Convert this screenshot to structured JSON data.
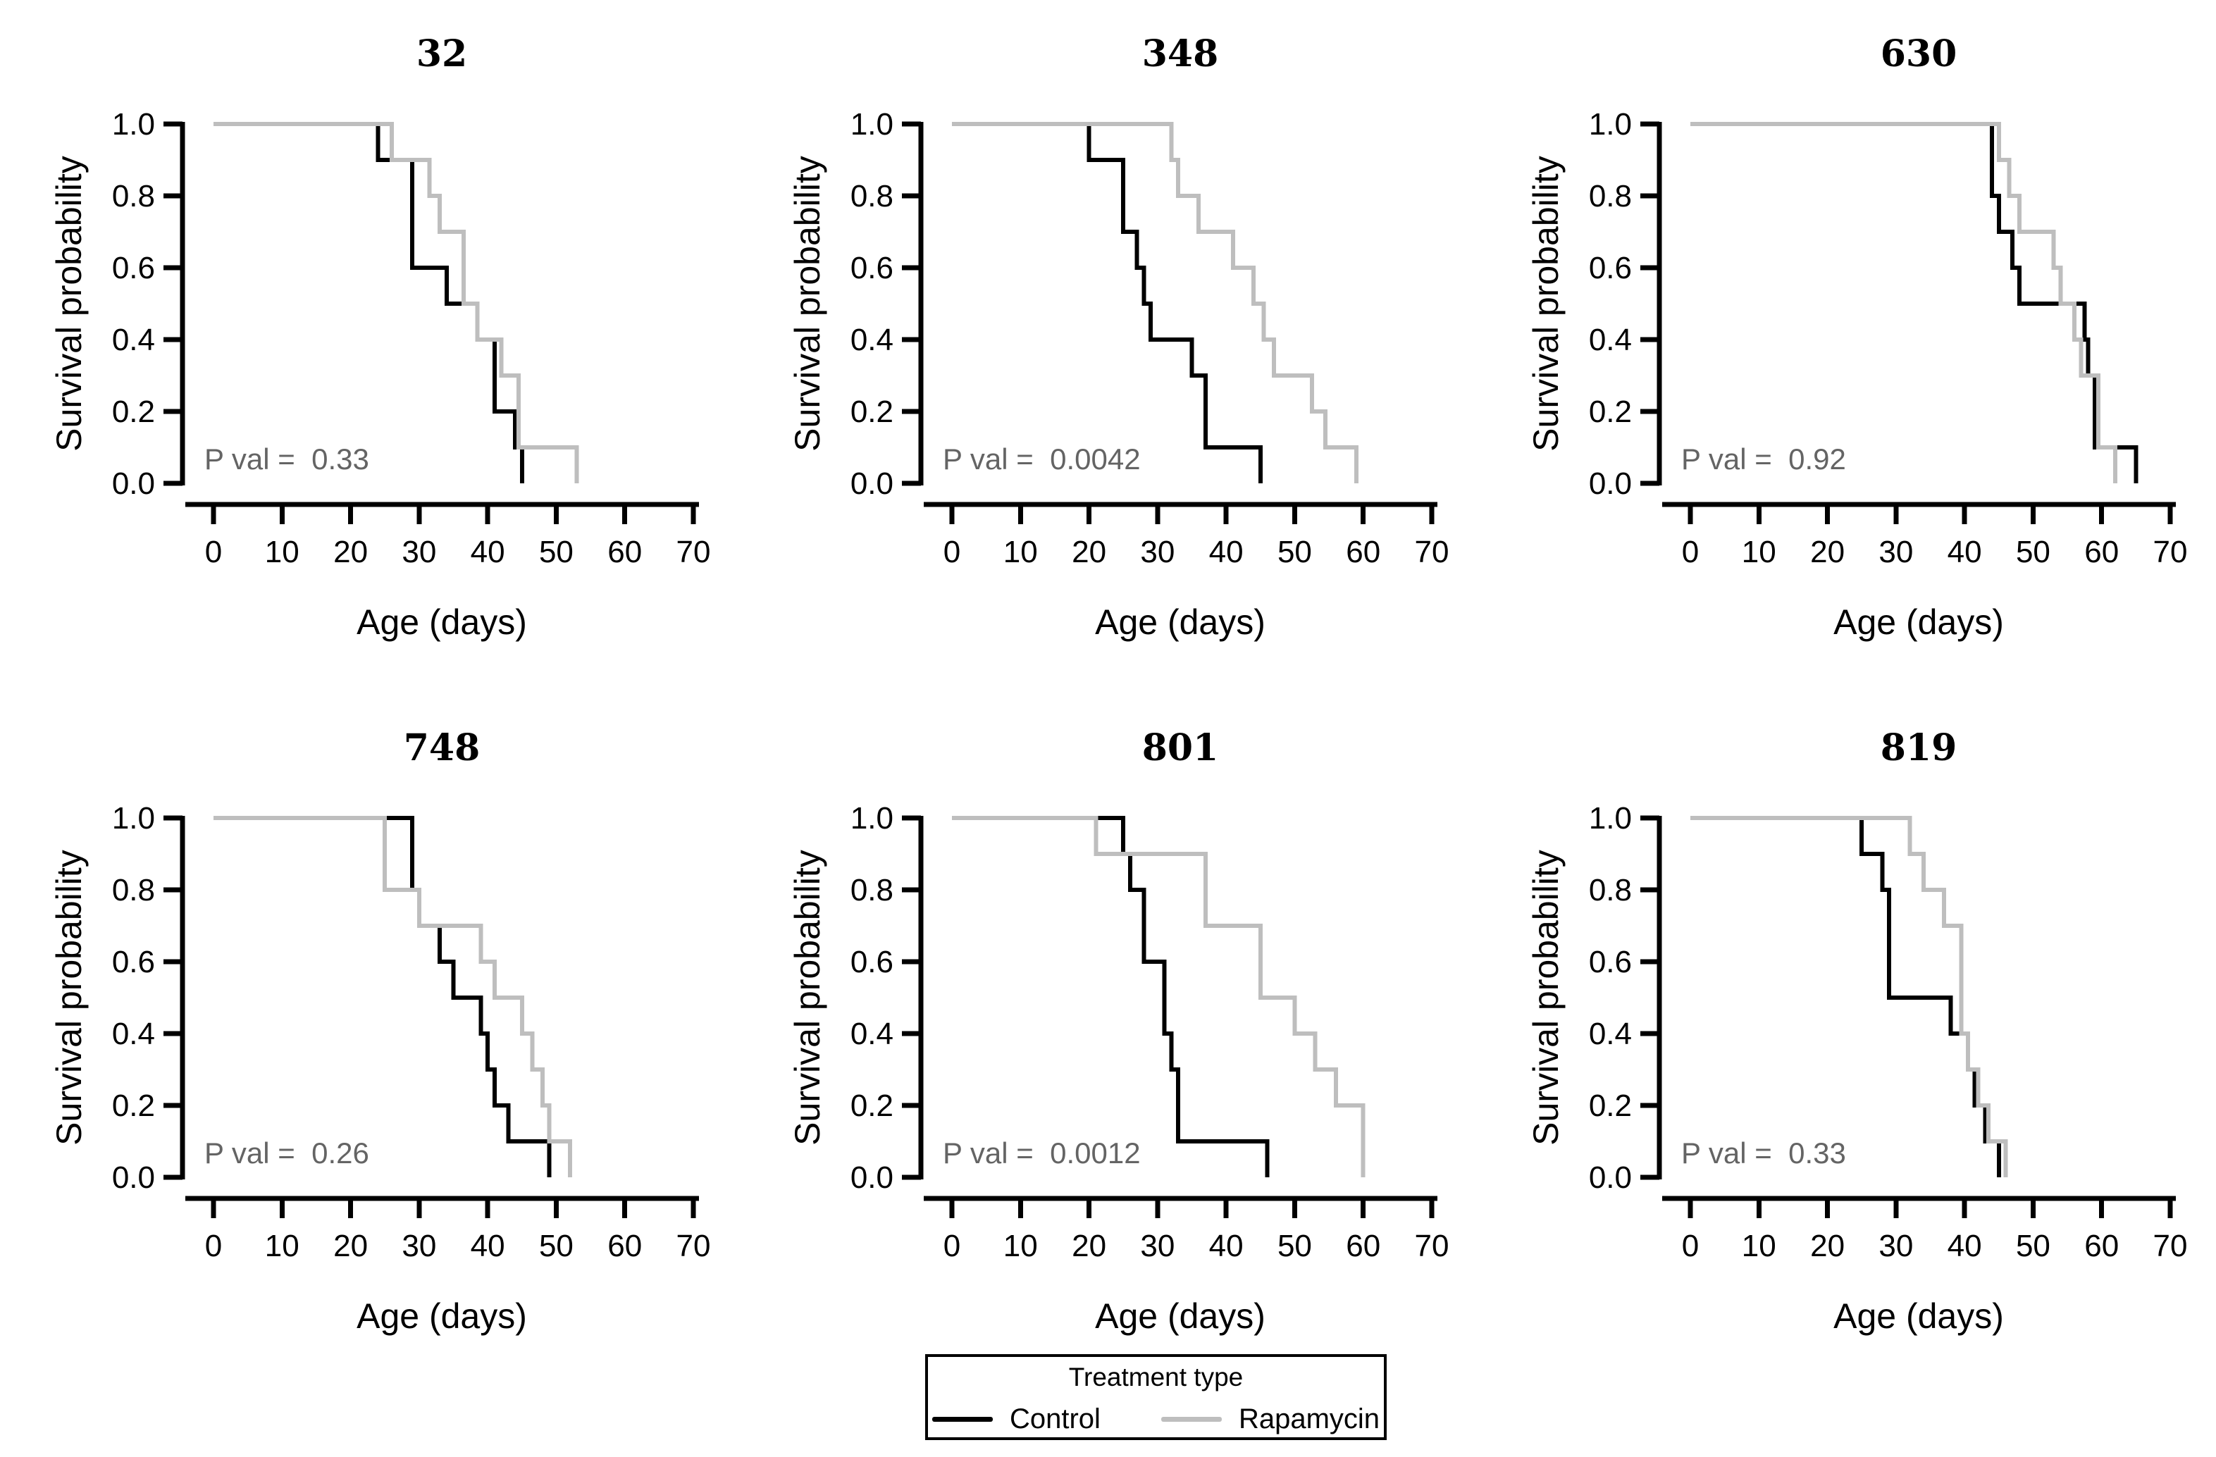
{
  "shared": {
    "ylabel": "Survival probability",
    "xlabel": "Age (days)",
    "x_ticks": [
      0,
      10,
      20,
      30,
      40,
      50,
      60,
      70
    ],
    "y_tick_labels": [
      "1.0",
      "0.8",
      "0.6",
      "0.4",
      "0.2",
      "0.0"
    ],
    "y_tick_values": [
      1.0,
      0.8,
      0.6,
      0.4,
      0.2,
      0.0
    ]
  },
  "colors": {
    "control": "#000000",
    "rapamycin": "#BEBEBE",
    "p_value_text": "#646464",
    "axis": "#000000",
    "background": "#FFFFFF"
  },
  "legend": {
    "title": "Treatment type",
    "items": [
      {
        "label": "Control",
        "color": "#000000"
      },
      {
        "label": "Rapamycin",
        "color": "#BEBEBE"
      }
    ]
  },
  "chart_data": [
    {
      "type": "line",
      "subtype": "kaplan-meier-step",
      "title": "32",
      "p_label": "P val =  0.33",
      "p_value": 0.33,
      "xlabel": "Age (days)",
      "ylabel": "Survival probability",
      "xlim": [
        0,
        70
      ],
      "ylim": [
        0.0,
        1.0
      ],
      "grid": false,
      "series": [
        {
          "name": "Control",
          "color": "#000000",
          "start": [
            0,
            1.0
          ],
          "drops": [
            [
              24,
              0.9
            ],
            [
              29,
              0.6
            ],
            [
              34,
              0.5
            ],
            [
              38.5,
              0.4
            ],
            [
              41,
              0.2
            ],
            [
              44,
              0.1
            ],
            [
              45,
              0.0
            ]
          ]
        },
        {
          "name": "Rapamycin",
          "color": "#BEBEBE",
          "start": [
            0,
            1.0
          ],
          "drops": [
            [
              26,
              0.9
            ],
            [
              31.5,
              0.8
            ],
            [
              33,
              0.7
            ],
            [
              36.5,
              0.5
            ],
            [
              38.5,
              0.4
            ],
            [
              42,
              0.3
            ],
            [
              44.5,
              0.1
            ],
            [
              53,
              0.0
            ]
          ]
        }
      ]
    },
    {
      "type": "line",
      "subtype": "kaplan-meier-step",
      "title": "348",
      "p_label": "P val =  0.0042",
      "p_value": 0.0042,
      "xlabel": "Age (days)",
      "ylabel": "Survival probability",
      "xlim": [
        0,
        70
      ],
      "ylim": [
        0.0,
        1.0
      ],
      "grid": false,
      "series": [
        {
          "name": "Control",
          "color": "#000000",
          "start": [
            0,
            1.0
          ],
          "drops": [
            [
              20,
              0.9
            ],
            [
              25,
              0.7
            ],
            [
              27,
              0.6
            ],
            [
              28,
              0.5
            ],
            [
              29,
              0.4
            ],
            [
              35,
              0.3
            ],
            [
              37,
              0.1
            ],
            [
              45,
              0.0
            ]
          ]
        },
        {
          "name": "Rapamycin",
          "color": "#BEBEBE",
          "start": [
            0,
            1.0
          ],
          "drops": [
            [
              32,
              0.9
            ],
            [
              33,
              0.8
            ],
            [
              36,
              0.7
            ],
            [
              41,
              0.6
            ],
            [
              44,
              0.5
            ],
            [
              45.5,
              0.4
            ],
            [
              47,
              0.3
            ],
            [
              52.5,
              0.2
            ],
            [
              54.5,
              0.1
            ],
            [
              59,
              0.0
            ]
          ]
        }
      ]
    },
    {
      "type": "line",
      "subtype": "kaplan-meier-step",
      "title": "630",
      "p_label": "P val =  0.92",
      "p_value": 0.92,
      "xlabel": "Age (days)",
      "ylabel": "Survival probability",
      "xlim": [
        0,
        70
      ],
      "ylim": [
        0.0,
        1.0
      ],
      "grid": false,
      "series": [
        {
          "name": "Control",
          "color": "#000000",
          "start": [
            0,
            1.0
          ],
          "drops": [
            [
              44,
              0.8
            ],
            [
              45,
              0.7
            ],
            [
              47,
              0.6
            ],
            [
              48,
              0.5
            ],
            [
              57.5,
              0.4
            ],
            [
              58,
              0.3
            ],
            [
              59,
              0.1
            ],
            [
              65,
              0.0
            ]
          ]
        },
        {
          "name": "Rapamycin",
          "color": "#BEBEBE",
          "start": [
            0,
            1.0
          ],
          "drops": [
            [
              45,
              0.9
            ],
            [
              46.5,
              0.8
            ],
            [
              48,
              0.7
            ],
            [
              53,
              0.6
            ],
            [
              54,
              0.5
            ],
            [
              56,
              0.4
            ],
            [
              57,
              0.3
            ],
            [
              59.5,
              0.1
            ],
            [
              62,
              0.0
            ]
          ]
        }
      ]
    },
    {
      "type": "line",
      "subtype": "kaplan-meier-step",
      "title": "748",
      "p_label": "P val =  0.26",
      "p_value": 0.26,
      "xlabel": "Age (days)",
      "ylabel": "Survival probability",
      "xlim": [
        0,
        70
      ],
      "ylim": [
        0.0,
        1.0
      ],
      "grid": false,
      "series": [
        {
          "name": "Control",
          "color": "#000000",
          "start": [
            0,
            1.0
          ],
          "drops": [
            [
              29,
              0.8
            ],
            [
              30,
              0.7
            ],
            [
              33,
              0.6
            ],
            [
              35,
              0.5
            ],
            [
              39,
              0.4
            ],
            [
              40,
              0.3
            ],
            [
              41,
              0.2
            ],
            [
              43,
              0.1
            ],
            [
              49,
              0.0
            ]
          ]
        },
        {
          "name": "Rapamycin",
          "color": "#BEBEBE",
          "start": [
            0,
            1.0
          ],
          "drops": [
            [
              25,
              0.8
            ],
            [
              30,
              0.7
            ],
            [
              39,
              0.6
            ],
            [
              41,
              0.5
            ],
            [
              45,
              0.4
            ],
            [
              46.5,
              0.3
            ],
            [
              48,
              0.2
            ],
            [
              49,
              0.1
            ],
            [
              52,
              0.0
            ]
          ]
        }
      ]
    },
    {
      "type": "line",
      "subtype": "kaplan-meier-step",
      "title": "801",
      "p_label": "P val =  0.0012",
      "p_value": 0.0012,
      "xlabel": "Age (days)",
      "ylabel": "Survival probability",
      "xlim": [
        0,
        70
      ],
      "ylim": [
        0.0,
        1.0
      ],
      "grid": false,
      "series": [
        {
          "name": "Control",
          "color": "#000000",
          "start": [
            0,
            1.0
          ],
          "drops": [
            [
              25,
              0.9
            ],
            [
              26,
              0.8
            ],
            [
              28,
              0.6
            ],
            [
              31,
              0.4
            ],
            [
              32,
              0.3
            ],
            [
              33,
              0.1
            ],
            [
              46,
              0.0
            ]
          ]
        },
        {
          "name": "Rapamycin",
          "color": "#BEBEBE",
          "start": [
            0,
            1.0
          ],
          "drops": [
            [
              21,
              0.9
            ],
            [
              37,
              0.7
            ],
            [
              45,
              0.5
            ],
            [
              50,
              0.4
            ],
            [
              53,
              0.3
            ],
            [
              56,
              0.2
            ],
            [
              60,
              0.0
            ]
          ]
        }
      ]
    },
    {
      "type": "line",
      "subtype": "kaplan-meier-step",
      "title": "819",
      "p_label": "P val =  0.33",
      "p_value": 0.33,
      "xlabel": "Age (days)",
      "ylabel": "Survival probability",
      "xlim": [
        0,
        70
      ],
      "ylim": [
        0.0,
        1.0
      ],
      "grid": false,
      "series": [
        {
          "name": "Control",
          "color": "#000000",
          "start": [
            0,
            1.0
          ],
          "drops": [
            [
              25,
              0.9
            ],
            [
              28,
              0.8
            ],
            [
              29,
              0.5
            ],
            [
              38,
              0.4
            ],
            [
              40.5,
              0.3
            ],
            [
              41.5,
              0.2
            ],
            [
              43,
              0.1
            ],
            [
              45,
              0.0
            ]
          ]
        },
        {
          "name": "Rapamycin",
          "color": "#BEBEBE",
          "start": [
            0,
            1.0
          ],
          "drops": [
            [
              32,
              0.9
            ],
            [
              34,
              0.8
            ],
            [
              37,
              0.7
            ],
            [
              39.5,
              0.4
            ],
            [
              40.5,
              0.3
            ],
            [
              42,
              0.2
            ],
            [
              43.5,
              0.1
            ],
            [
              46,
              0.0
            ]
          ]
        }
      ]
    }
  ]
}
